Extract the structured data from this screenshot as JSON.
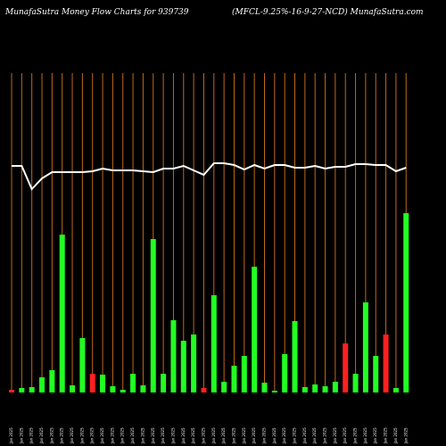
{
  "header": {
    "left_title": "MunafaSutra  Money Flow  Charts for 939739",
    "right_title": "(MFCL-9.25%-16-9-27-NCD) MunafaSutra.com"
  },
  "chart_data": {
    "type": "bar",
    "title": "Money Flow Charts for 939739",
    "y_range": [
      0,
      360
    ],
    "colors": {
      "up": "#22ff22",
      "down": "#ff2020",
      "grid": "#c06818",
      "line": "#ffffff",
      "background": "#000000"
    },
    "categories": [
      "Jan 2025",
      "Jan 2025",
      "Jan 2025",
      "Jan 2025",
      "Jan 2025",
      "Jan 2025",
      "Jan 2025",
      "Jan 2025",
      "Jan 2025",
      "Jan 2025",
      "Jan 2025",
      "Jan 2025",
      "Jan 2025",
      "Jan 2025",
      "Jan 2025",
      "Jan 2025",
      "Jan 2025",
      "Jan 2025",
      "Jan 2025",
      "Jan 2025",
      "Jan 2025",
      "Jan 2025",
      "Jan 2025",
      "Jan 2025",
      "Jan 2025",
      "Jan 2025",
      "Jan 2025",
      "Jan 2025",
      "Jan 2025",
      "Jan 2025",
      "Jan 2025",
      "Jan 2025",
      "Jan 2025",
      "Jan 2025",
      "Jan 2025",
      "Jan 2025",
      "Jan 2025",
      "Jan 2025",
      "Jan 2025",
      "Jan 2025"
    ],
    "volume": [
      3,
      5,
      6,
      17,
      25,
      177,
      8,
      61,
      21,
      20,
      7,
      3,
      21,
      8,
      172,
      21,
      81,
      58,
      65,
      5,
      109,
      12,
      30,
      41,
      141,
      11,
      2,
      43,
      80,
      6,
      9,
      7,
      12,
      55,
      21,
      101,
      41,
      65,
      5,
      201
    ],
    "direction": [
      "down",
      "up",
      "up",
      "up",
      "up",
      "up",
      "up",
      "up",
      "down",
      "up",
      "up",
      "up",
      "up",
      "up",
      "up",
      "up",
      "up",
      "up",
      "up",
      "down",
      "up",
      "up",
      "up",
      "up",
      "up",
      "up",
      "up",
      "up",
      "up",
      "up",
      "up",
      "up",
      "up",
      "down",
      "up",
      "up",
      "up",
      "down",
      "up",
      "up"
    ],
    "price_line": [
      254,
      254,
      228,
      240,
      247,
      247,
      247,
      247,
      248,
      251,
      249,
      249,
      249,
      248,
      247,
      251,
      251,
      254,
      249,
      244,
      257,
      257,
      255,
      250,
      255,
      251,
      255,
      255,
      252,
      252,
      254,
      251,
      253,
      253,
      256,
      256,
      255,
      255,
      248,
      252
    ]
  }
}
